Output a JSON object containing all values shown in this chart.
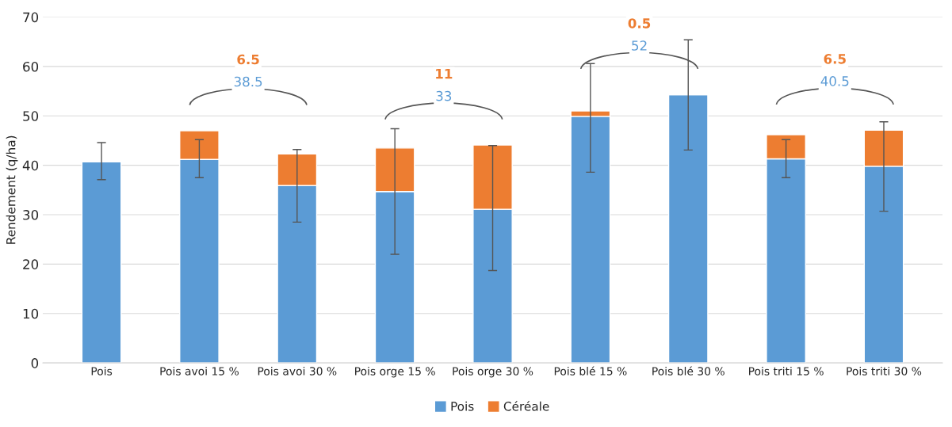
{
  "chart_data": {
    "type": "bar",
    "stacked": true,
    "ylabel": "Rendement (q/ha)",
    "categories": [
      "Pois",
      "Pois avoi 15 %",
      "Pois avoi 30 %",
      "Pois orge 15 %",
      "Pois orge 30 %",
      "Pois blé 15 %",
      "Pois blé 30 %",
      "Pois triti 15 %",
      "Pois triti 30 %"
    ],
    "series": [
      {
        "name": "Pois",
        "color": "#5b9bd5",
        "values": [
          40.7,
          41.2,
          35.9,
          34.7,
          31.1,
          49.9,
          54.3,
          41.3,
          39.8
        ],
        "errors": [
          [
            37.1,
            44.6
          ],
          [
            37.5,
            45.2
          ],
          [
            28.5,
            43.2
          ],
          [
            22.0,
            47.4
          ],
          [
            18.7,
            44.0
          ],
          [
            38.6,
            60.6
          ],
          [
            43.1,
            65.4
          ],
          [
            37.5,
            45.2
          ],
          [
            30.7,
            48.8
          ]
        ]
      },
      {
        "name": "Céréale",
        "color": "#ed7d31",
        "values": [
          null,
          5.8,
          6.4,
          8.8,
          13.0,
          1.1,
          null,
          4.9,
          7.3
        ]
      }
    ],
    "annotations": [
      "6.5",
      "38.5",
      "11",
      "33",
      "0.5",
      "52",
      "6.5",
      "40.5"
    ],
    "ylim": [
      0,
      70
    ],
    "yticks": [
      0,
      10,
      20,
      30,
      40,
      50,
      60,
      70
    ],
    "grid": "y",
    "legend": "bottom"
  }
}
